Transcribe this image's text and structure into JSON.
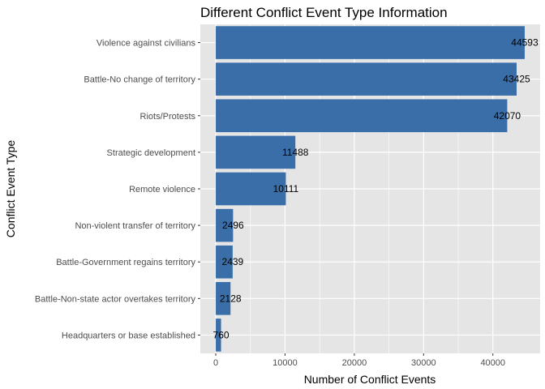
{
  "chart_data": {
    "type": "bar",
    "orientation": "horizontal",
    "title": "Different Conflict Event Type Information",
    "xlabel": "Number of Conflict Events",
    "ylabel": "Conflict Event Type",
    "categories": [
      "Violence against civilians",
      "Battle-No change of territory",
      "Riots/Protests",
      "Strategic development",
      "Remote violence",
      "Non-violent transfer of territory",
      "Battle-Government regains territory",
      "Battle-Non-state actor overtakes territory",
      "Headquarters or base established"
    ],
    "values": [
      44593,
      43425,
      42070,
      11488,
      10111,
      2496,
      2439,
      2128,
      760
    ],
    "xlim": [
      -2230,
      46820
    ],
    "xticks": [
      0,
      10000,
      20000,
      30000,
      40000
    ],
    "xtick_labels": [
      "0",
      "10000",
      "20000",
      "30000",
      "40000"
    ],
    "grid": true,
    "legend": "none",
    "colors": {
      "bar": "#3a6ea8",
      "panel_background": "#e5e5e5",
      "grid": "#ffffff"
    }
  }
}
